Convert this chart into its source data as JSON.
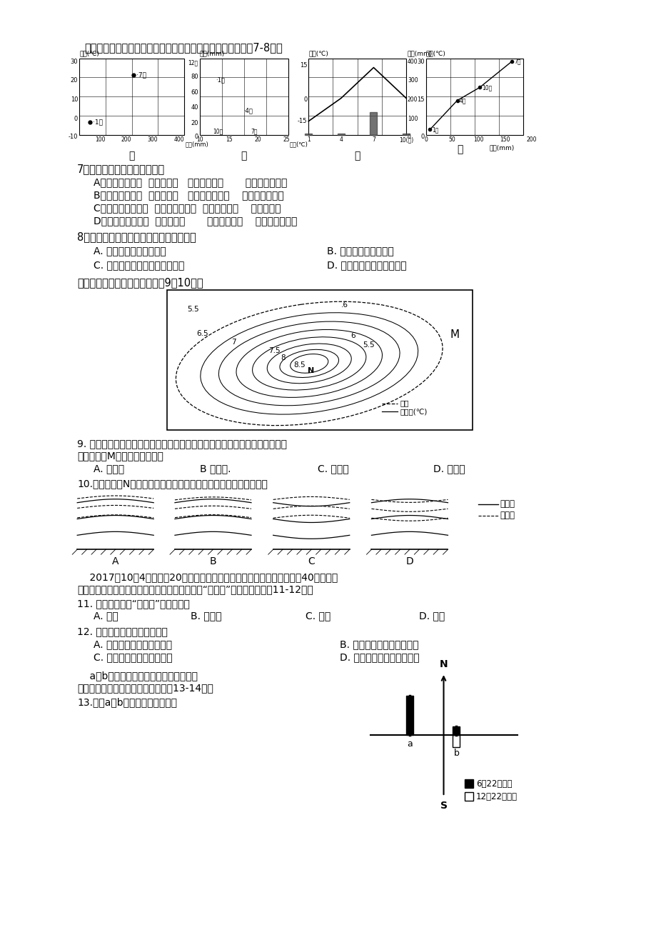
{
  "bg_color": "#ffffff",
  "page_width": 9.2,
  "page_height": 13.02,
  "header_text": "下图为甲、乙、丙、丁四地气温和降水资料统计图。读图完成7-8题。",
  "q7_text": "7、下列气候类型判断正确的是",
  "q7_A": "A、温带季风气候  地中海气候   温带季风气候       亚热带季风气候",
  "q7_B": "B、温带季风气候  地中海气候   温带大陆性气候    亚热带季风气候",
  "q7_C": "C、温带大陆性气候  亚热带季风气候  温带季风气候    地中海气候",
  "q7_D": "D、温带大陆性气候  地中海气候       温带季风气候    亚热带季风气候",
  "q8_text": "8、关于四地气候特征的叙述中，正确的是",
  "q8_A": "A. 丁地，气温年较差最大",
  "q8_B": "B. 丙地，年降水量最少",
  "q8_C": "C. 乙地，大陆性气候特征最突出",
  "q8_D": "D. 甲地，水热条件最为优越",
  "urban_heat_intro": "读合肥的城市热岛示意图，完成9～10题。",
  "q9_line1": "9. 热岛效应形成了市、郊之间的热岛环流，称为城市风系，在近地面的风又称",
  "q9_line2": "为乡村风。M地乡村风的风向是",
  "q10_text": "10.能正确表示N地近地面在垂直方向上等温面与等压面关系的图示是",
  "meteor_line1": "    2017年10月4日中秋大20点左右，一道火光划过云南香格里拉县城西北40公里处的",
  "meteor_line2": "德钒县上空，后经证实，这是一枚自太空坠落的“火流星”。据此完成下兡11-12题。",
  "q11_text": "11. 自太空坠落的“火流星”一般多属于",
  "q12_text": "12. 太阳系中小行星带的位置在",
  "q12_A": "A. 火星轨道和木星轨道之间",
  "q12_B": "B. 地球轨道和火星轨道之间",
  "q12_C": "C. 木星轨道和土星轨道之间",
  "q12_D": "D. 金星轨道和地球轨道之间",
  "shadow_line1": "    a、b两城夏至日和冬至日正午旗杆（等",
  "shadow_line2": "高）的影长及朝向如右图，据此回儿13-14题：",
  "q13_text": "13.关于a、b两城的说法正确的是",
  "legend_june": "6月22日影长",
  "legend_dec": "12月22日影长"
}
